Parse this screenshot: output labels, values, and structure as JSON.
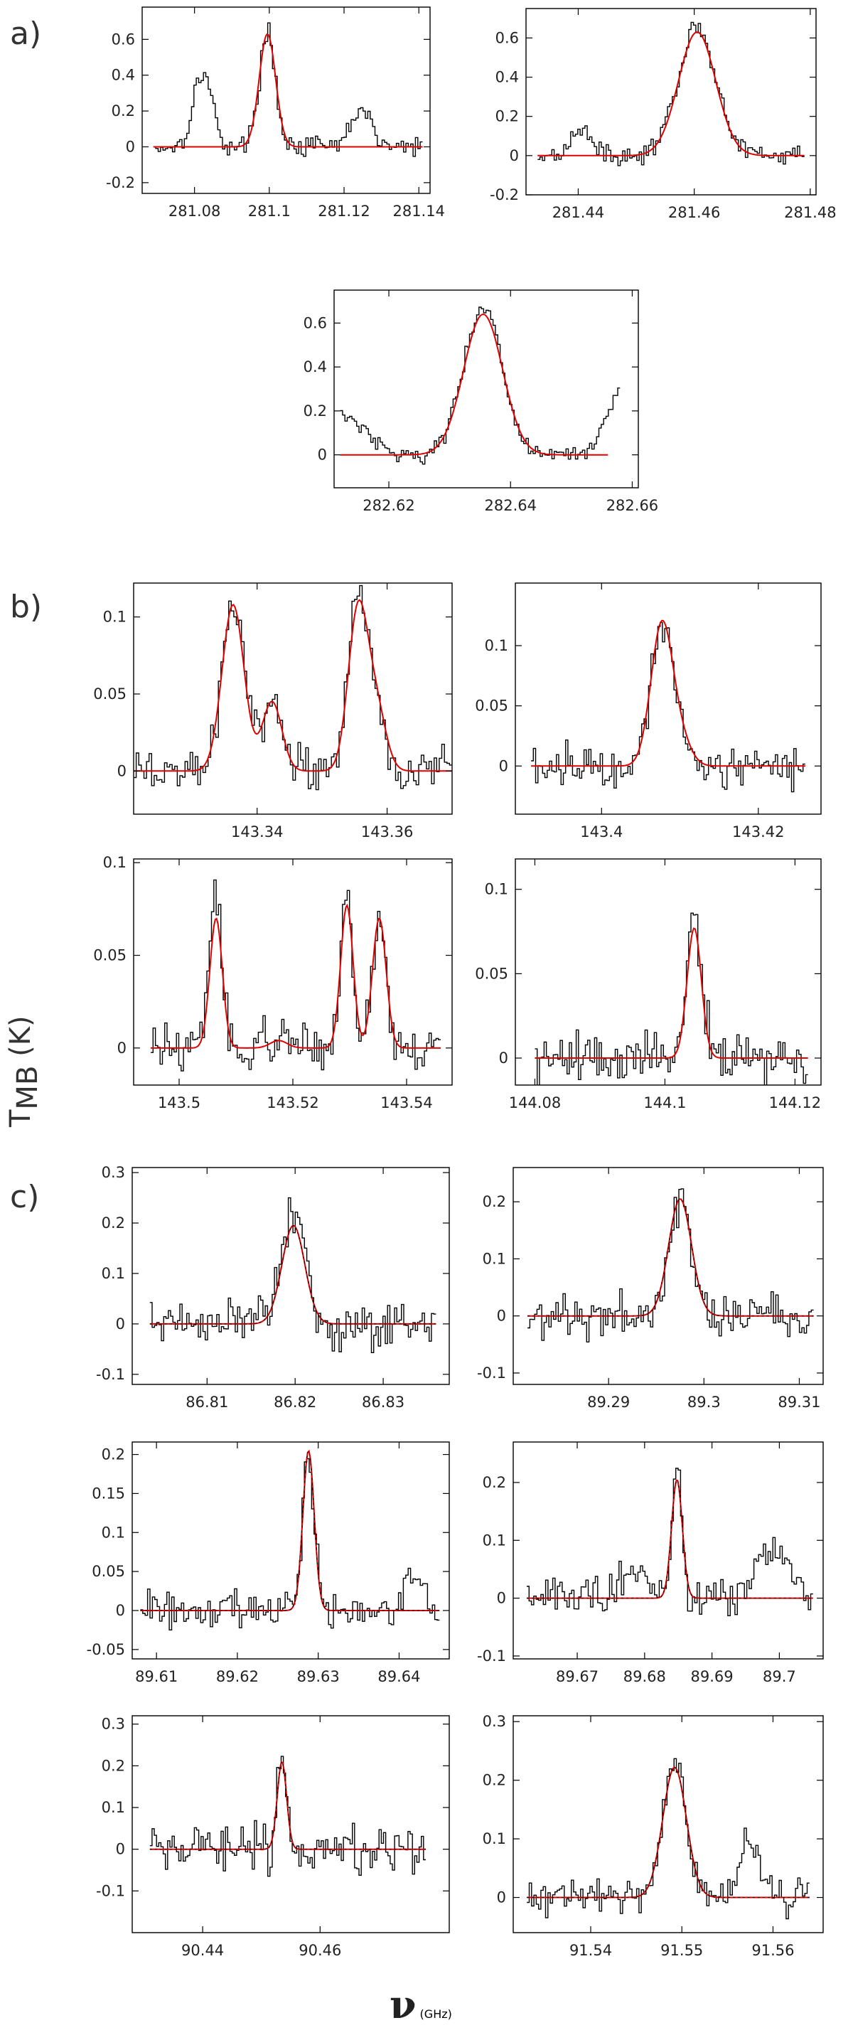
{
  "figure": {
    "ylabel_main": "T",
    "ylabel_sub": "MB",
    "ylabel_unit": " (K)",
    "xlabel_symbol": "ν",
    "xlabel_unit": " (GHz)",
    "section_labels": [
      "a)",
      "b)",
      "c)"
    ]
  },
  "colors": {
    "data": "#000000",
    "fit": "#e00000",
    "frame": "#000000"
  },
  "chart_data": [
    {
      "type": "line",
      "panel": "a1",
      "xlim": [
        281.066,
        281.143
      ],
      "ylim": [
        -0.26,
        0.78
      ],
      "xticks": [
        281.08,
        281.1,
        281.12,
        281.14
      ],
      "xtick_labels": [
        "281.08",
        "281.1",
        "281.12",
        "281.14"
      ],
      "yticks": [
        -0.2,
        0,
        0.2,
        0.4,
        0.6
      ],
      "ytick_labels": [
        "-0.2",
        "0",
        "0.2",
        "0.4",
        "0.6"
      ],
      "obs_range": [
        281.069,
        281.141
      ],
      "noise": 0.05,
      "peaks": [
        [
          281.0822,
          0.42,
          0.0025
        ],
        [
          281.0995,
          0.63,
          0.0022
        ],
        [
          281.1245,
          0.22,
          0.0025
        ]
      ],
      "fit_range": [
        281.069,
        281.141
      ],
      "fit": [
        [
          281.0995,
          0.63,
          0.0022
        ]
      ],
      "fit_dashed": false
    },
    {
      "type": "line",
      "panel": "a2",
      "xlim": [
        281.431,
        281.481
      ],
      "ylim": [
        -0.2,
        0.75
      ],
      "xticks": [
        281.44,
        281.46,
        281.48
      ],
      "xtick_labels": [
        "281.44",
        "281.46",
        "281.48"
      ],
      "yticks": [
        -0.2,
        0,
        0.2,
        0.4,
        0.6
      ],
      "ytick_labels": [
        "-0.2",
        "0",
        "0.2",
        "0.4",
        "0.6"
      ],
      "obs_range": [
        281.433,
        281.479
      ],
      "noise": 0.04,
      "peaks": [
        [
          281.4405,
          0.14,
          0.0018
        ],
        [
          281.4605,
          0.66,
          0.0032
        ]
      ],
      "fit_range": [
        281.433,
        281.479
      ],
      "fit": [
        [
          281.4605,
          0.63,
          0.0032
        ]
      ],
      "fit_dashed": false
    },
    {
      "type": "line",
      "panel": "a3",
      "xlim": [
        282.611,
        282.661
      ],
      "ylim": [
        -0.15,
        0.75
      ],
      "xticks": [
        282.62,
        282.64,
        282.66
      ],
      "xtick_labels": [
        "282.62",
        "282.64",
        "282.66"
      ],
      "yticks": [
        0,
        0.2,
        0.4,
        0.6
      ],
      "ytick_labels": [
        "0",
        "0.2",
        "0.4",
        "0.6"
      ],
      "obs_range": [
        282.612,
        282.658
      ],
      "noise": 0.035,
      "peaks": [
        [
          282.6355,
          0.66,
          0.0032
        ]
      ],
      "edge_left": 0.2,
      "edge_right": 0.28,
      "fit_range": [
        282.612,
        282.656
      ],
      "fit": [
        [
          282.6355,
          0.64,
          0.0032
        ]
      ],
      "fit_dashed": false
    },
    {
      "type": "line",
      "panel": "b1",
      "xlim": [
        143.321,
        143.37
      ],
      "ylim": [
        -0.028,
        0.122
      ],
      "xticks": [
        143.34,
        143.36
      ],
      "xtick_labels": [
        "143.34",
        "143.36"
      ],
      "yticks": [
        0,
        0.05,
        0.1
      ],
      "ytick_labels": [
        "0",
        "0.05",
        "0.1"
      ],
      "obs_range": [
        143.321,
        143.37
      ],
      "noise": 0.012,
      "peaks": [
        [
          143.3363,
          0.108,
          0.0017
        ],
        [
          143.3423,
          0.045,
          0.0015
        ],
        [
          143.3555,
          0.108,
          0.0015
        ],
        [
          143.3583,
          0.04,
          0.0015
        ]
      ],
      "fit_range": [
        143.321,
        143.37
      ],
      "fit": [
        [
          143.3363,
          0.108,
          0.0017
        ],
        [
          143.3423,
          0.045,
          0.0015
        ],
        [
          143.3555,
          0.103,
          0.0015
        ],
        [
          143.3583,
          0.04,
          0.0015
        ]
      ],
      "fit_dashed": false
    },
    {
      "type": "line",
      "panel": "b2",
      "xlim": [
        143.389,
        143.428
      ],
      "ylim": [
        -0.04,
        0.152
      ],
      "xticks": [
        143.4,
        143.42
      ],
      "xtick_labels": [
        "143.4",
        "143.42"
      ],
      "yticks": [
        0,
        0.05,
        0.1
      ],
      "ytick_labels": [
        "0",
        "0.05",
        "0.1"
      ],
      "obs_range": [
        143.391,
        143.426
      ],
      "noise": 0.015,
      "peaks": [
        [
          143.4077,
          0.12,
          0.0014
        ],
        [
          143.4102,
          0.02,
          0.0013
        ]
      ],
      "fit_range": [
        143.391,
        143.426
      ],
      "fit": [
        [
          143.4077,
          0.118,
          0.0014
        ],
        [
          143.4102,
          0.018,
          0.0013
        ]
      ],
      "fit_dashed": false
    },
    {
      "type": "line",
      "panel": "b3",
      "xlim": [
        143.492,
        143.548
      ],
      "ylim": [
        -0.02,
        0.102
      ],
      "xticks": [
        143.5,
        143.52,
        143.54
      ],
      "xtick_labels": [
        "143.5",
        "143.52",
        "143.54"
      ],
      "yticks": [
        0,
        0.05,
        0.1
      ],
      "ytick_labels": [
        "0",
        "0.05",
        "0.1"
      ],
      "obs_range": [
        143.495,
        143.546
      ],
      "noise": 0.011,
      "peaks": [
        [
          143.5065,
          0.082,
          0.0011
        ],
        [
          143.5175,
          0.004,
          0.0015
        ],
        [
          143.5295,
          0.078,
          0.0011
        ],
        [
          143.5352,
          0.07,
          0.0012
        ]
      ],
      "fit_range": [
        143.495,
        143.546
      ],
      "fit": [
        [
          143.5065,
          0.07,
          0.0011
        ],
        [
          143.5175,
          0.004,
          0.0015
        ],
        [
          143.5295,
          0.077,
          0.0011
        ],
        [
          143.5352,
          0.07,
          0.0012
        ]
      ],
      "fit_dashed": false
    },
    {
      "type": "line",
      "panel": "b4",
      "xlim": [
        144.077,
        144.124
      ],
      "ylim": [
        -0.016,
        0.118
      ],
      "xticks": [
        144.08,
        144.1,
        144.12
      ],
      "xtick_labels": [
        "144.08",
        "144.1",
        "144.12"
      ],
      "yticks": [
        0,
        0.05,
        0.1
      ],
      "ytick_labels": [
        "0",
        "0.05",
        "0.1"
      ],
      "obs_range": [
        144.08,
        144.122
      ],
      "noise": 0.013,
      "peaks": [
        [
          144.1045,
          0.085,
          0.0011
        ]
      ],
      "fit_range": [
        144.08,
        144.122
      ],
      "fit": [
        [
          144.1045,
          0.077,
          0.0011
        ]
      ],
      "fit_dashed": false
    },
    {
      "type": "line",
      "panel": "c1",
      "xlim": [
        86.8015,
        86.8375
      ],
      "ylim": [
        -0.12,
        0.31
      ],
      "xticks": [
        86.81,
        86.82,
        86.83
      ],
      "xtick_labels": [
        "86.81",
        "86.82",
        "86.83"
      ],
      "yticks": [
        -0.1,
        0,
        0.1,
        0.2,
        0.3
      ],
      "ytick_labels": [
        "-0.1",
        "0",
        "0.1",
        "0.2",
        "0.3"
      ],
      "obs_range": [
        86.8035,
        86.836
      ],
      "noise": 0.04,
      "peaks": [
        [
          86.8198,
          0.21,
          0.0013
        ]
      ],
      "fit_range": [
        86.8035,
        86.836
      ],
      "fit": [
        [
          86.8198,
          0.195,
          0.0013
        ]
      ],
      "fit_dashed": true
    },
    {
      "type": "line",
      "panel": "c2",
      "xlim": [
        89.28,
        89.3125
      ],
      "ylim": [
        -0.12,
        0.26
      ],
      "xticks": [
        89.29,
        89.3,
        89.31
      ],
      "xtick_labels": [
        "89.29",
        "89.3",
        "89.31"
      ],
      "yticks": [
        -0.1,
        0,
        0.1,
        0.2
      ],
      "ytick_labels": [
        "-0.1",
        "0",
        "0.1",
        "0.2"
      ],
      "obs_range": [
        89.2815,
        89.3115
      ],
      "noise": 0.035,
      "peaks": [
        [
          89.2975,
          0.21,
          0.0012
        ]
      ],
      "fit_range": [
        89.2815,
        89.3115
      ],
      "fit": [
        [
          89.2975,
          0.205,
          0.0012
        ]
      ],
      "fit_dashed": true
    },
    {
      "type": "line",
      "panel": "c3",
      "xlim": [
        89.607,
        89.6462
      ],
      "ylim": [
        -0.062,
        0.216
      ],
      "xticks": [
        89.61,
        89.62,
        89.63,
        89.64
      ],
      "xtick_labels": [
        "89.61",
        "89.62",
        "89.63",
        "89.64"
      ],
      "yticks": [
        -0.05,
        0,
        0.05,
        0.1,
        0.15,
        0.2
      ],
      "ytick_labels": [
        "-0.05",
        "0",
        "0.05",
        "0.1",
        "0.15",
        "0.2"
      ],
      "obs_range": [
        89.608,
        89.645
      ],
      "noise": 0.022,
      "peaks": [
        [
          89.6288,
          0.205,
          0.0007
        ],
        [
          89.6418,
          0.055,
          0.001
        ]
      ],
      "fit_range": [
        89.608,
        89.645
      ],
      "fit": [
        [
          89.6288,
          0.205,
          0.0007
        ]
      ],
      "fit_dashed": true
    },
    {
      "type": "line",
      "panel": "c4",
      "xlim": [
        89.6605,
        89.7065
      ],
      "ylim": [
        -0.105,
        0.27
      ],
      "xticks": [
        89.67,
        89.68,
        89.69,
        89.7
      ],
      "xtick_labels": [
        "89.67",
        "89.68",
        "89.69",
        "89.7"
      ],
      "yticks": [
        -0.1,
        0,
        0.1,
        0.2
      ],
      "ytick_labels": [
        "-0.1",
        "0",
        "0.1",
        "0.2"
      ],
      "obs_range": [
        89.6625,
        89.705
      ],
      "noise": 0.03,
      "peaks": [
        [
          89.6848,
          0.21,
          0.0008
        ],
        [
          89.699,
          0.08,
          0.0025
        ],
        [
          89.6785,
          0.05,
          0.002
        ]
      ],
      "fit_range": [
        89.6625,
        89.705
      ],
      "fit": [
        [
          89.6848,
          0.205,
          0.0008
        ]
      ],
      "fit_dashed": true
    },
    {
      "type": "line",
      "panel": "c5",
      "xlim": [
        90.428,
        90.482
      ],
      "ylim": [
        -0.2,
        0.32
      ],
      "xticks": [
        90.44,
        90.46
      ],
      "xtick_labels": [
        "90.44",
        "90.46"
      ],
      "yticks": [
        -0.1,
        0,
        0.1,
        0.2,
        0.3
      ],
      "ytick_labels": [
        "-0.1",
        "0",
        "0.1",
        "0.2",
        "0.3"
      ],
      "obs_range": [
        90.431,
        90.478
      ],
      "noise": 0.05,
      "peaks": [
        [
          90.4535,
          0.23,
          0.0008
        ]
      ],
      "fit_range": [
        90.431,
        90.478
      ],
      "fit": [
        [
          90.4535,
          0.21,
          0.0008
        ]
      ],
      "fit_dashed": true
    },
    {
      "type": "line",
      "panel": "c6",
      "xlim": [
        91.5315,
        91.5655
      ],
      "ylim": [
        -0.06,
        0.31
      ],
      "xticks": [
        91.54,
        91.55,
        91.56
      ],
      "xtick_labels": [
        "91.54",
        "91.55",
        "91.56"
      ],
      "yticks": [
        0,
        0.1,
        0.2,
        0.3
      ],
      "ytick_labels": [
        "0",
        "0.1",
        "0.2",
        "0.3"
      ],
      "obs_range": [
        91.533,
        91.564
      ],
      "noise": 0.025,
      "peaks": [
        [
          91.5492,
          0.235,
          0.0013
        ],
        [
          91.5575,
          0.09,
          0.0012
        ]
      ],
      "fit_range": [
        91.533,
        91.564
      ],
      "fit": [
        [
          91.5492,
          0.222,
          0.0013
        ]
      ],
      "fit_dashed": true
    }
  ]
}
